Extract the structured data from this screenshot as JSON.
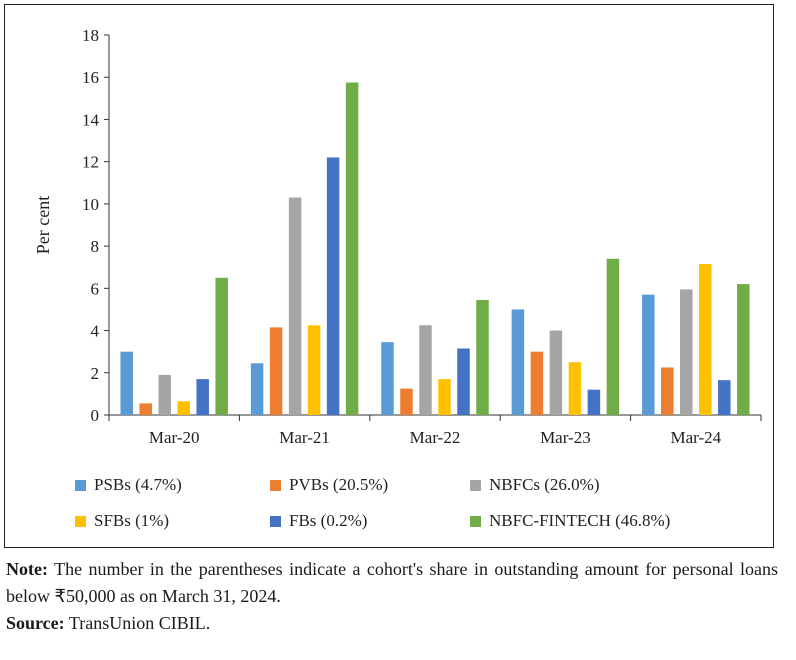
{
  "chart_data": {
    "type": "bar",
    "ylabel": "Per cent",
    "ylim": [
      0,
      18
    ],
    "yticks": [
      0,
      2,
      4,
      6,
      8,
      10,
      12,
      14,
      16,
      18
    ],
    "categories": [
      "Mar-20",
      "Mar-21",
      "Mar-22",
      "Mar-23",
      "Mar-24"
    ],
    "series": [
      {
        "name": "PSBs (4.7%)",
        "color": "#5b9bd5",
        "values": [
          3.0,
          2.45,
          3.45,
          5.0,
          5.7
        ]
      },
      {
        "name": "PVBs (20.5%)",
        "color": "#ed7d31",
        "values": [
          0.55,
          4.15,
          1.25,
          3.0,
          2.25
        ]
      },
      {
        "name": "NBFCs (26.0%)",
        "color": "#a5a5a5",
        "values": [
          1.9,
          10.3,
          4.25,
          4.0,
          5.95
        ]
      },
      {
        "name": "SFBs (1%)",
        "color": "#ffc000",
        "values": [
          0.65,
          4.25,
          1.7,
          2.5,
          7.15
        ]
      },
      {
        "name": "FBs (0.2%)",
        "color": "#4472c4",
        "values": [
          1.7,
          12.2,
          3.15,
          1.2,
          1.65
        ]
      },
      {
        "name": "NBFC-FINTECH (46.8%)",
        "color": "#70ad47",
        "values": [
          6.5,
          15.75,
          5.45,
          7.4,
          6.2
        ]
      }
    ],
    "grid": false,
    "legend_position": "bottom"
  },
  "notes": {
    "note_label": "Note:",
    "note_text": " The number in the parentheses indicate a cohort's share in outstanding amount for personal loans below ₹50,000 as on March 31, 2024.",
    "source_label": "Source:",
    "source_text": " TransUnion CIBIL."
  }
}
